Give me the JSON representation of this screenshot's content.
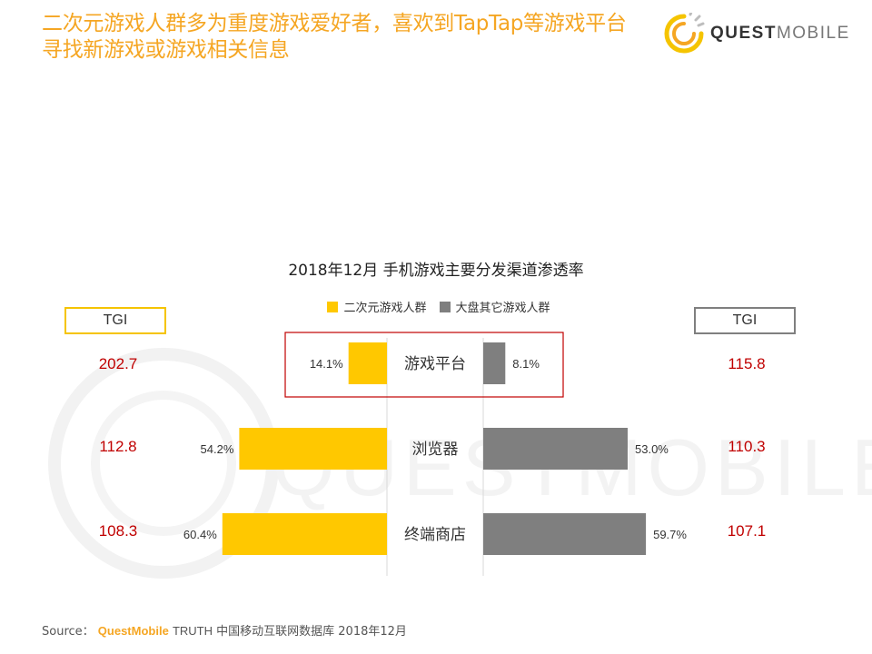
{
  "slide": {
    "title_line1": "二次元游戏人群多为重度游戏爱好者，喜欢到TapTap等游戏平台",
    "title_line2": "寻找新游戏或游戏相关信息",
    "brand_strong": "QUEST",
    "brand_light": "MOBILE"
  },
  "colors": {
    "title": "#F5A623",
    "series_a": "#FFC800",
    "series_b": "#7F7F7F",
    "tgi_value": "#C00000",
    "highlight_box": "#C00000"
  },
  "tgi": {
    "left_label": "TGI",
    "right_label": "TGI"
  },
  "chart_data": {
    "type": "bar",
    "orientation": "horizontal-butterfly",
    "title": "2018年12月 手机游戏主要分发渠道渗透率",
    "categories": [
      "游戏平台",
      "浏览器",
      "终端商店"
    ],
    "series": [
      {
        "name": "二次元游戏人群",
        "values": [
          14.1,
          54.2,
          60.4
        ],
        "labels": [
          "14.1%",
          "54.2%",
          "60.4%"
        ],
        "tgi": [
          "202.7",
          "112.8",
          "108.3"
        ],
        "color": "#FFC800"
      },
      {
        "name": "大盘其它游戏人群",
        "values": [
          8.1,
          53.0,
          59.7
        ],
        "labels": [
          "8.1%",
          "53.0%",
          "59.7%"
        ],
        "tgi": [
          "115.8",
          "110.3",
          "107.1"
        ],
        "color": "#7F7F7F"
      }
    ],
    "unit": "%",
    "highlighted_category": "游戏平台",
    "legend_position": "top-center"
  },
  "source": {
    "prefix": "Source：",
    "brand": "QuestMobile",
    "rest_en": "TRUTH",
    "rest_cn": "中国移动互联网数据库 2018年12月"
  }
}
